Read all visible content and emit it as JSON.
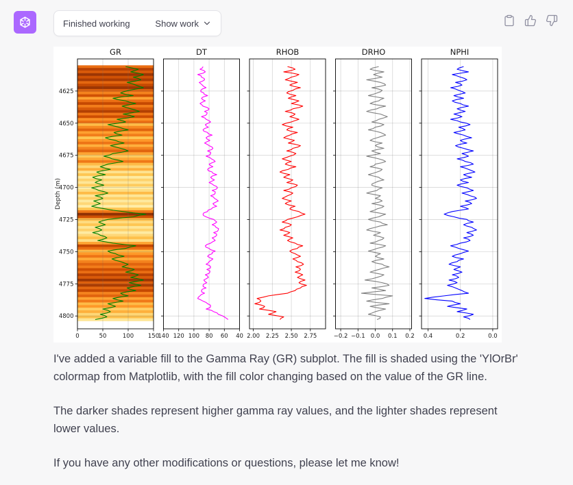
{
  "header": {
    "status_label": "Finished working",
    "show_work_label": "Show work"
  },
  "colors": {
    "page_bg": "#f7f7f8",
    "avatar_bg": "#ab68ff",
    "icon_gray": "#8e8ea0",
    "text": "#40414f"
  },
  "message": {
    "paragraphs": [
      "I've added a variable fill to the Gamma Ray (GR) subplot. The fill is shaded using the 'YlOrBr' colormap from Matplotlib, with the fill color changing based on the value of the GR line.",
      "The darker shades represent higher gamma ray values, and the lighter shades represent lower values.",
      "If you have any other modifications or questions, please let me know!"
    ]
  },
  "chart_data": {
    "type": "line",
    "title": "",
    "ylabel": "Depth (m)",
    "ylim": [
      4600,
      4810
    ],
    "y_ticks": [
      4625,
      4650,
      4675,
      4700,
      4725,
      4750,
      4775,
      4800
    ],
    "grid": true,
    "y_axis_inverted": true,
    "depth_start": 4606,
    "depth_step": 2.05,
    "colormap_name": "YlOrBr",
    "colormap_stops": [
      "#ffffe5",
      "#fff7bc",
      "#fee391",
      "#fec44f",
      "#fe9929",
      "#ec7014",
      "#cc4c02",
      "#993404",
      "#662506"
    ],
    "tracks": [
      {
        "name": "GR",
        "color": "#008000",
        "xlim": [
          0,
          150
        ],
        "ticks": [
          0,
          50,
          100,
          150
        ],
        "tick_format": 0,
        "fill_colormap": true,
        "values": [
          95,
          120,
          105,
          130,
          110,
          125,
          98,
          115,
          130,
          102,
          85,
          110,
          70,
          95,
          115,
          88,
          105,
          122,
          90,
          112,
          78,
          95,
          60,
          82,
          100,
          72,
          88,
          55,
          75,
          92,
          65,
          85,
          100,
          70,
          52,
          68,
          90,
          60,
          45,
          65,
          38,
          55,
          30,
          48,
          35,
          52,
          28,
          42,
          60,
          35,
          50,
          32,
          45,
          28,
          55,
          90,
          135,
          110,
          60,
          42,
          55,
          35,
          48,
          30,
          45,
          58,
          40,
          70,
          115,
          95,
          60,
          75,
          92,
          68,
          85,
          100,
          88,
          112,
          95,
          120,
          105,
          130,
          102,
          125,
          98,
          115,
          85,
          100,
          70,
          90,
          60,
          75,
          50,
          65,
          45,
          58,
          35
        ]
      },
      {
        "name": "DT",
        "color": "#ff00ff",
        "xlim": [
          140,
          40
        ],
        "ticks": [
          140,
          120,
          100,
          80,
          60,
          40
        ],
        "tick_format": 0,
        "fill_colormap": false,
        "values": [
          88,
          92,
          85,
          95,
          90,
          86,
          93,
          89,
          84,
          91,
          87,
          82,
          90,
          85,
          92,
          88,
          80,
          86,
          83,
          90,
          84,
          78,
          85,
          81,
          88,
          82,
          76,
          84,
          79,
          86,
          80,
          75,
          82,
          78,
          84,
          77,
          72,
          80,
          75,
          82,
          76,
          70,
          78,
          73,
          80,
          74,
          69,
          76,
          72,
          78,
          73,
          68,
          75,
          70,
          77,
          82,
          88,
          84,
          74,
          70,
          76,
          71,
          68,
          74,
          70,
          76,
          72,
          78,
          85,
          80,
          72,
          76,
          82,
          75,
          80,
          84,
          78,
          83,
          79,
          85,
          81,
          87,
          83,
          88,
          84,
          90,
          86,
          92,
          95,
          88,
          82,
          78,
          84,
          74,
          68,
          60,
          55
        ]
      },
      {
        "name": "RHOB",
        "color": "#ff0000",
        "xlim": [
          1.95,
          2.95
        ],
        "ticks": [
          2.0,
          2.25,
          2.5,
          2.75
        ],
        "tick_format": 2,
        "fill_colormap": false,
        "values": [
          2.45,
          2.55,
          2.4,
          2.6,
          2.5,
          2.42,
          2.58,
          2.48,
          2.62,
          2.52,
          2.44,
          2.56,
          2.46,
          2.6,
          2.5,
          2.65,
          2.52,
          2.42,
          2.55,
          2.48,
          2.6,
          2.5,
          2.38,
          2.52,
          2.44,
          2.58,
          2.48,
          2.4,
          2.54,
          2.46,
          2.62,
          2.52,
          2.44,
          2.56,
          2.48,
          2.38,
          2.5,
          2.42,
          2.56,
          2.46,
          2.35,
          2.48,
          2.4,
          2.52,
          2.44,
          2.58,
          2.5,
          2.4,
          2.52,
          2.45,
          2.38,
          2.5,
          2.42,
          2.55,
          2.48,
          2.6,
          2.68,
          2.58,
          2.45,
          2.38,
          2.5,
          2.42,
          2.35,
          2.48,
          2.4,
          2.52,
          2.45,
          2.55,
          2.65,
          2.58,
          2.48,
          2.55,
          2.62,
          2.52,
          2.58,
          2.66,
          2.56,
          2.62,
          2.55,
          2.65,
          2.58,
          2.68,
          2.6,
          2.7,
          2.62,
          2.55,
          2.45,
          2.2,
          2.05,
          2.1,
          2.02,
          2.15,
          2.08,
          2.3,
          2.2,
          2.4,
          2.35
        ]
      },
      {
        "name": "DRHO",
        "color": "#7f7f7f",
        "xlim": [
          -0.23,
          0.21
        ],
        "ticks": [
          -0.2,
          -0.1,
          0.0,
          0.1,
          0.2
        ],
        "tick_format": 1,
        "fill_colormap": false,
        "values": [
          0.02,
          -0.03,
          0.05,
          -0.01,
          0.04,
          -0.05,
          0.03,
          0.06,
          -0.02,
          0.04,
          0.01,
          -0.04,
          0.05,
          0.02,
          -0.03,
          0.06,
          0.01,
          -0.05,
          0.03,
          0.07,
          0.02,
          -0.02,
          0.05,
          0.0,
          -0.04,
          0.03,
          0.06,
          0.01,
          -0.03,
          0.04,
          0.0,
          0.05,
          -0.02,
          0.03,
          -0.05,
          0.02,
          0.06,
          0.0,
          -0.03,
          0.04,
          0.01,
          -0.04,
          0.02,
          0.05,
          0.0,
          -0.02,
          0.04,
          0.01,
          -0.05,
          0.03,
          0.0,
          0.04,
          -0.02,
          0.05,
          0.01,
          -0.03,
          0.06,
          0.02,
          -0.04,
          0.03,
          0.07,
          0.0,
          -0.05,
          0.03,
          -0.01,
          0.05,
          0.02,
          -0.03,
          0.06,
          0.01,
          -0.04,
          0.03,
          0.0,
          0.05,
          -0.02,
          0.04,
          0.08,
          0.02,
          -0.03,
          0.05,
          0.01,
          -0.06,
          0.04,
          0.08,
          -0.02,
          0.06,
          -0.08,
          0.1,
          0.04,
          -0.05,
          0.08,
          -0.03,
          0.06,
          0.0,
          -0.04,
          0.03,
          0.01
        ]
      },
      {
        "name": "NPHI",
        "color": "#0000ff",
        "xlim": [
          0.44,
          -0.03
        ],
        "ticks": [
          0.4,
          0.2,
          0.0
        ],
        "tick_format": 1,
        "fill_colormap": false,
        "values": [
          0.18,
          0.22,
          0.15,
          0.25,
          0.2,
          0.16,
          0.23,
          0.19,
          0.26,
          0.21,
          0.17,
          0.24,
          0.18,
          0.25,
          0.2,
          0.15,
          0.22,
          0.17,
          0.24,
          0.19,
          0.26,
          0.2,
          0.14,
          0.21,
          0.17,
          0.24,
          0.18,
          0.13,
          0.2,
          0.16,
          0.23,
          0.18,
          0.12,
          0.19,
          0.15,
          0.22,
          0.17,
          0.12,
          0.2,
          0.15,
          0.11,
          0.18,
          0.13,
          0.2,
          0.15,
          0.22,
          0.16,
          0.12,
          0.19,
          0.14,
          0.1,
          0.17,
          0.13,
          0.2,
          0.15,
          0.25,
          0.3,
          0.24,
          0.16,
          0.12,
          0.18,
          0.13,
          0.1,
          0.16,
          0.12,
          0.18,
          0.14,
          0.2,
          0.26,
          0.21,
          0.15,
          0.2,
          0.25,
          0.18,
          0.22,
          0.27,
          0.2,
          0.24,
          0.19,
          0.25,
          0.21,
          0.27,
          0.22,
          0.28,
          0.23,
          0.19,
          0.15,
          0.3,
          0.42,
          0.25,
          0.2,
          0.28,
          0.16,
          0.22,
          0.12,
          0.18,
          0.14
        ]
      }
    ]
  }
}
